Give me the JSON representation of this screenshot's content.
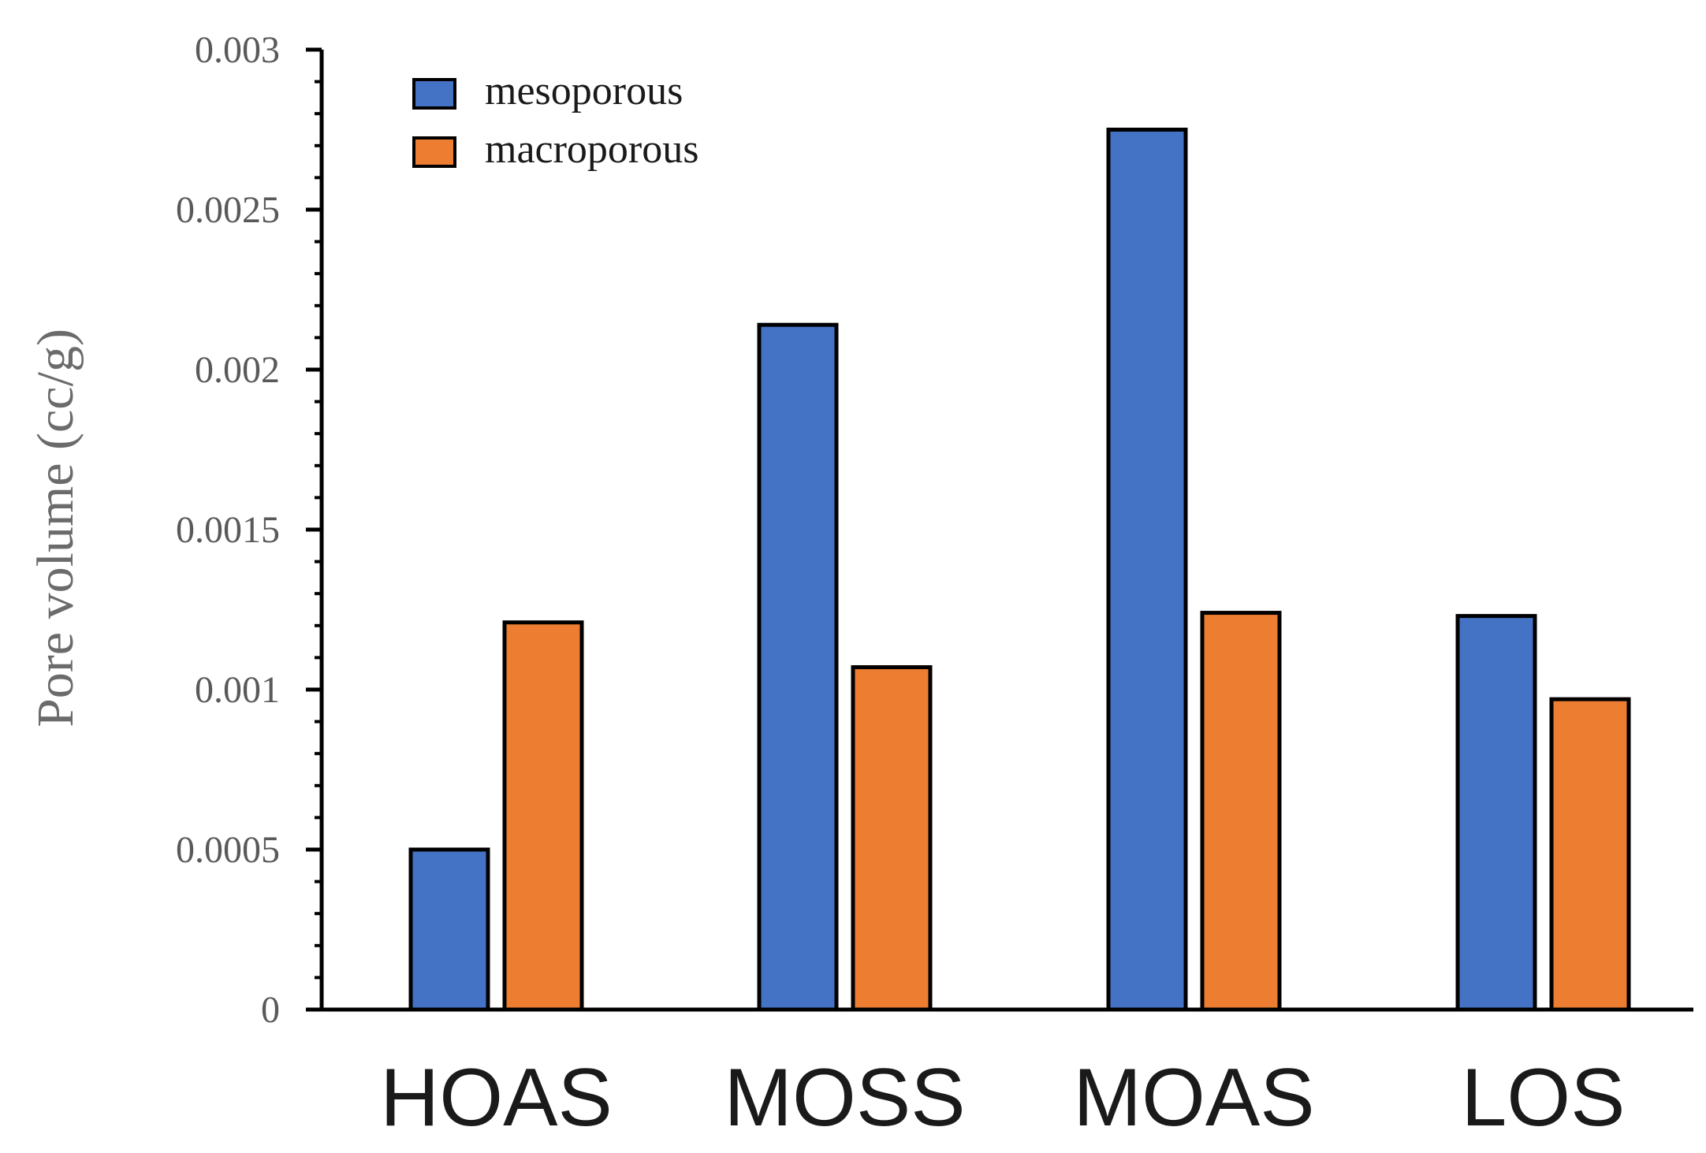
{
  "chart_data": {
    "type": "bar",
    "title": "",
    "xlabel": "",
    "ylabel": "Pore volume (cc/g)",
    "ylim": [
      0,
      0.003
    ],
    "yticks": [
      0,
      0.0005,
      0.001,
      0.0015,
      0.002,
      0.0025,
      0.003
    ],
    "ytick_labels": [
      "0",
      "0.0005",
      "0.001",
      "0.0015",
      "0.002",
      "0.0025",
      "0.003"
    ],
    "minor_ticks_per_major": 5,
    "categories": [
      "HOAS",
      "MOSS",
      "MOAS",
      "LOS"
    ],
    "series": [
      {
        "name": "mesoporous",
        "color": "#4472C4",
        "values": [
          0.0005,
          0.00214,
          0.00275,
          0.00123
        ]
      },
      {
        "name": "macroporous",
        "color": "#ED7D31",
        "values": [
          0.00121,
          0.00107,
          0.00124,
          0.00097
        ]
      }
    ],
    "legend_position": "top-left",
    "grid": false
  }
}
